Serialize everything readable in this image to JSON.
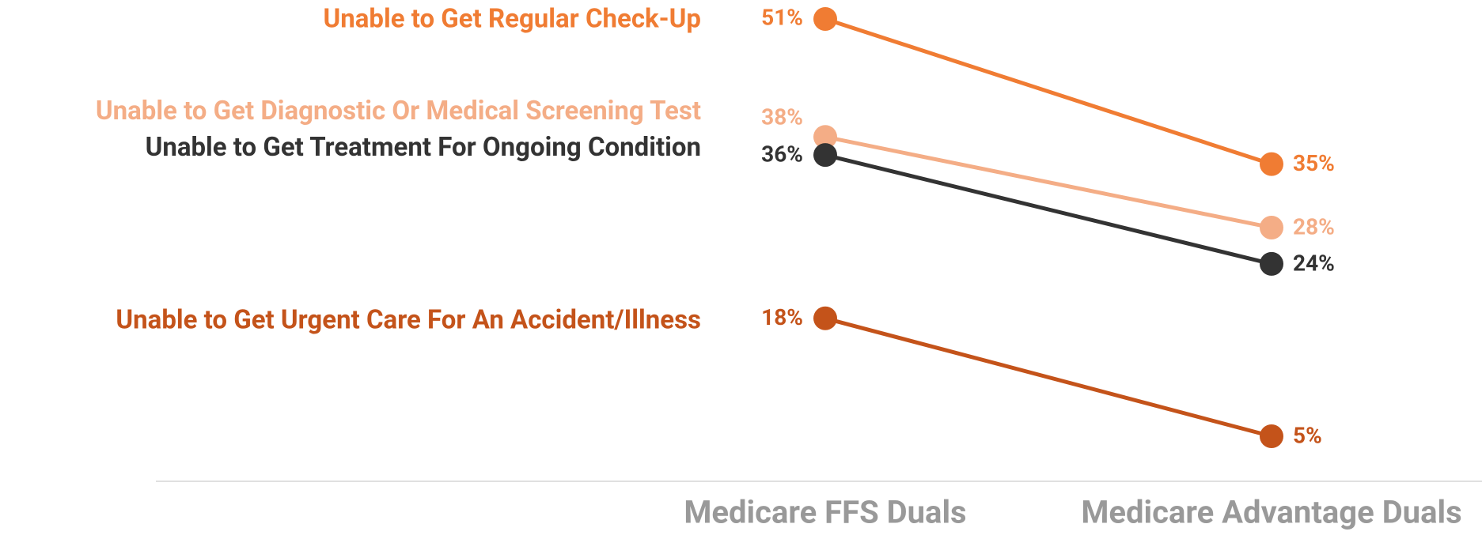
{
  "chart_data": {
    "type": "slope",
    "categories": [
      "Medicare FFS Duals",
      "Medicare Advantage Duals"
    ],
    "ylim": [
      0,
      53
    ],
    "series": [
      {
        "name": "Unable to Get Regular Check-Up",
        "color": "#f07c33",
        "values": [
          51,
          35
        ],
        "value_labels": [
          "51%",
          "35%"
        ]
      },
      {
        "name": "Unable to Get Diagnostic Or Medical Screening Test",
        "color": "#f4ad86",
        "values": [
          38,
          28
        ],
        "value_labels": [
          "38%",
          "28%"
        ]
      },
      {
        "name": "Unable to Get Treatment For Ongoing Condition",
        "color": "#333333",
        "values": [
          36,
          24
        ],
        "value_labels": [
          "36%",
          "24%"
        ]
      },
      {
        "name": "Unable to Get Urgent Care For An Accident/Illness",
        "color": "#c4531a",
        "values": [
          18,
          5
        ],
        "value_labels": [
          "18%",
          "5%"
        ]
      }
    ]
  }
}
